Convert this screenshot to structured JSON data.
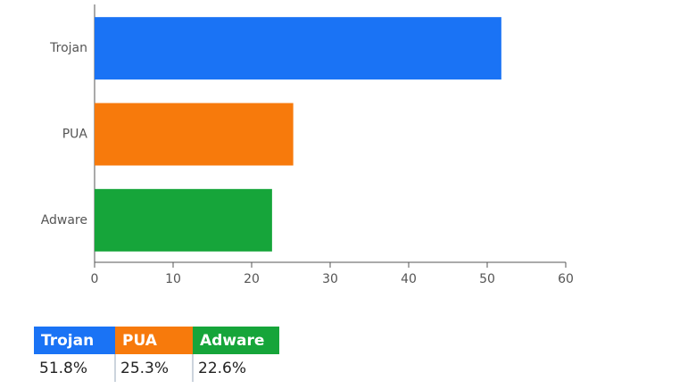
{
  "chart_data": {
    "type": "bar",
    "orientation": "horizontal",
    "categories": [
      "Trojan",
      "PUA",
      "Adware"
    ],
    "values": [
      51.8,
      25.3,
      22.6
    ],
    "value_labels": [
      "51.8%",
      "25.3%",
      "22.6%"
    ],
    "colors": [
      "#1a73f5",
      "#f77a0c",
      "#16a53a"
    ],
    "xlim": [
      0,
      60
    ],
    "xticks": [
      0,
      10,
      20,
      30,
      40,
      50,
      60
    ],
    "grid": false
  }
}
